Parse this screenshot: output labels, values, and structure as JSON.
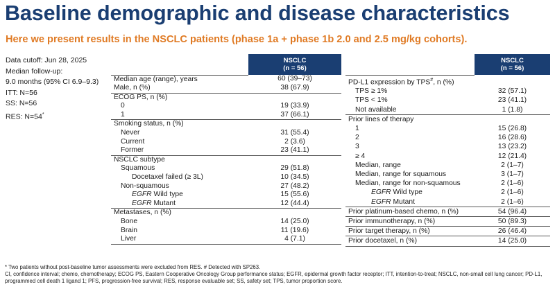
{
  "title": "Baseline demographic and disease characteristics",
  "subtitle": "Here we present results in the NSCLC patients (phase 1a + phase 1b 2.0 and 2.5 mg/kg cohorts).",
  "info": {
    "data_cutoff": "Data cutoff: Jun 28, 2025",
    "median_followup_label": "Median follow-up:",
    "median_followup_value": "9.0 months (95% CI 6.9–9.3)",
    "itt": "ITT: N=56",
    "ss": "SS: N=56",
    "res_text": "RES: N=54",
    "res_sup": "*"
  },
  "header": {
    "col_line1": "NSCLC",
    "col_line2": "(n = 56)"
  },
  "left_table": [
    {
      "label": "Median age (range), years",
      "value": "60 (39–73)"
    },
    {
      "label": "Male, n (%)",
      "value": "38 (67.9)"
    },
    {
      "label": "ECOG PS, n (%)",
      "value": "",
      "sep": true
    },
    {
      "label": "0",
      "value": "19 (33.9)",
      "indent": 1
    },
    {
      "label": "1",
      "value": "37 (66.1)",
      "indent": 1
    },
    {
      "label": "Smoking status, n (%)",
      "value": "",
      "sep": true
    },
    {
      "label": "Never",
      "value": "31 (55.4)",
      "indent": 1
    },
    {
      "label": "Current",
      "value": "2 (3.6)",
      "indent": 1
    },
    {
      "label": "Former",
      "value": "23 (41.1)",
      "indent": 1
    },
    {
      "label": "NSCLC subtype",
      "value": "",
      "sep": true
    },
    {
      "label": "Squamous",
      "value": "29 (51.8)",
      "indent": 1
    },
    {
      "label": "Docetaxel failed (≥ 3L)",
      "value": "10 (34.5)",
      "indent": 2
    },
    {
      "label": "Non-squamous",
      "value": "27 (48.2)",
      "indent": 1
    },
    {
      "label": "Wild type",
      "prefix": "EGFR",
      "value": "15 (55.6)",
      "indent": 2
    },
    {
      "label": "Mutant",
      "prefix": "EGFR",
      "value": "12 (44.4)",
      "indent": 2
    },
    {
      "label": "Metastases, n (%)",
      "value": "",
      "sep": true
    },
    {
      "label": "Bone",
      "value": "14 (25.0)",
      "indent": 1
    },
    {
      "label": "Brain",
      "value": "11 (19.6)",
      "indent": 1
    },
    {
      "label": "Liver",
      "value": "4 (7.1)",
      "indent": 1
    }
  ],
  "right_table": [
    {
      "label": "PD-L1 expression by TPS",
      "sup": "#",
      "label_after": ", n (%)",
      "value": ""
    },
    {
      "label": "TPS ≥ 1%",
      "value": "32 (57.1)",
      "indent": 1
    },
    {
      "label": "TPS < 1%",
      "value": "23 (41.1)",
      "indent": 1
    },
    {
      "label": "Not available",
      "value": "1 (1.8)",
      "indent": 1
    },
    {
      "label": "Prior lines of therapy",
      "value": "",
      "sep": true
    },
    {
      "label": "1",
      "value": "15 (26.8)",
      "indent": 1
    },
    {
      "label": "2",
      "value": "16 (28.6)",
      "indent": 1
    },
    {
      "label": "3",
      "value": "13 (23.2)",
      "indent": 1
    },
    {
      "label": "≥ 4",
      "value": "12 (21.4)",
      "indent": 1
    },
    {
      "label": "Median, range",
      "value": "2 (1–7)",
      "indent": 1
    },
    {
      "label": "Median, range for squamous",
      "value": "3 (1–7)",
      "indent": 1
    },
    {
      "label": "Median, range for non-squamous",
      "value": "2 (1–6)",
      "indent": 1
    },
    {
      "label": "Wild type",
      "prefix": "EGFR",
      "value": "2 (1–6)",
      "indent": 3
    },
    {
      "label": "Mutant",
      "prefix": "EGFR",
      "value": "2 (1–6)",
      "indent": 3
    },
    {
      "label": "Prior platinum-based chemo, n (%)",
      "value": "54 (96.4)",
      "sep": true
    },
    {
      "label": "Prior immunotherapy, n (%)",
      "value": "50 (89.3)",
      "sep": true
    },
    {
      "label": "Prior target therapy, n (%)",
      "value": "26 (46.4)",
      "sep": true
    },
    {
      "label": "Prior docetaxel, n (%)",
      "value": "14 (25.0)",
      "sep": true
    }
  ],
  "footnotes": {
    "line1": "* Two patients without post-baseline tumor assessments were excluded from RES. # Detected with SP263.",
    "line2": "CI, confidence interval; chemo, chemotherapy; ECOG PS, Eastern Cooperative Oncology Group performance status; EGFR, epidermal growth factor receptor; ITT, intention-to-treat; NSCLC, non-small cell lung cancer; PD-L1, programmed cell death 1 ligand 1; PFS, progression-free survival; RES, response evaluable set; SS, safety set; TPS, tumor proportion score."
  }
}
